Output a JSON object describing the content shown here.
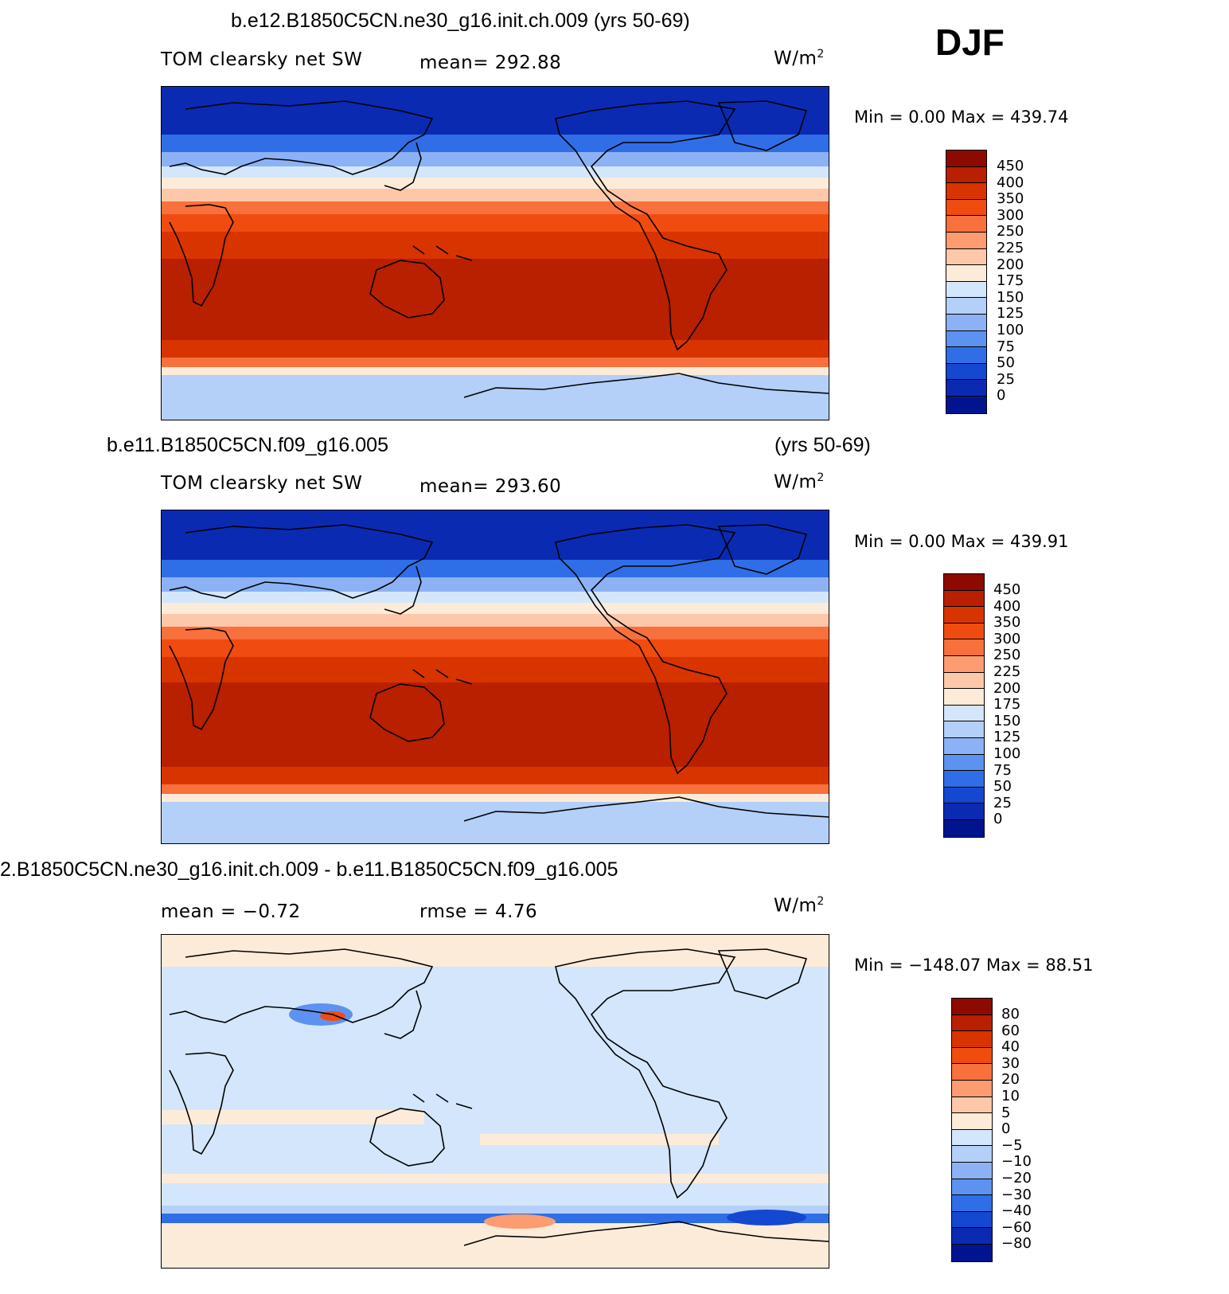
{
  "season": "DJF",
  "panels": [
    {
      "title": "b.e12.B1850C5CN.ne30_g16.init.ch.009 (yrs 50-69)",
      "variable": "TOM clearsky net SW",
      "stat": "mean=  292.88",
      "stat2": "",
      "units": "W/m",
      "units_sup": "2",
      "minmax": "Min  =      0.00  Max  =  439.74",
      "colorbar": {
        "labels": [
          "450",
          "400",
          "350",
          "300",
          "250",
          "225",
          "200",
          "175",
          "150",
          "125",
          "100",
          "75",
          "50",
          "25",
          "0"
        ],
        "colors": [
          "#8c0a00",
          "#b82000",
          "#d83400",
          "#f04c10",
          "#f8703c",
          "#fc9c70",
          "#fdc8aa",
          "#fdebd9",
          "#d3e6fb",
          "#b4cff8",
          "#8cb2f5",
          "#5e92f0",
          "#2f6ee6",
          "#1548d0",
          "#0a2ab2",
          "#001490"
        ]
      }
    },
    {
      "title_left": "b.e11.B1850C5CN.f09_g16.005",
      "title_right": "(yrs 50-69)",
      "variable": "TOM clearsky net SW",
      "stat": "mean=  293.60",
      "stat2": "",
      "units": "W/m",
      "units_sup": "2",
      "minmax": "Min  =      0.00  Max  =  439.91",
      "colorbar": {
        "labels": [
          "450",
          "400",
          "350",
          "300",
          "250",
          "225",
          "200",
          "175",
          "150",
          "125",
          "100",
          "75",
          "50",
          "25",
          "0"
        ],
        "colors": [
          "#8c0a00",
          "#b82000",
          "#d83400",
          "#f04c10",
          "#f8703c",
          "#fc9c70",
          "#fdc8aa",
          "#fdebd9",
          "#d3e6fb",
          "#b4cff8",
          "#8cb2f5",
          "#5e92f0",
          "#2f6ee6",
          "#1548d0",
          "#0a2ab2",
          "#001490"
        ]
      }
    },
    {
      "title": "2.B1850C5CN.ne30_g16.init.ch.009 - b.e11.B1850C5CN.f09_g16.005",
      "variable": "mean  =    −0.72",
      "stat": "rmse  =      4.76",
      "stat2": "",
      "units": "W/m",
      "units_sup": "2",
      "minmax": "Min  =  −148.07  Max  =    88.51",
      "colorbar": {
        "labels": [
          "80",
          "60",
          "40",
          "30",
          "20",
          "10",
          "5",
          "0",
          "−5",
          "−10",
          "−20",
          "−30",
          "−40",
          "−60",
          "−80"
        ],
        "colors": [
          "#8c0a00",
          "#b82000",
          "#d83400",
          "#f04c10",
          "#f8703c",
          "#fc9c70",
          "#fdc8aa",
          "#fdebd9",
          "#d3e6fb",
          "#b4cff8",
          "#8cb2f5",
          "#5e92f0",
          "#2f6ee6",
          "#1548d0",
          "#0a2ab2",
          "#001490"
        ]
      }
    }
  ]
}
